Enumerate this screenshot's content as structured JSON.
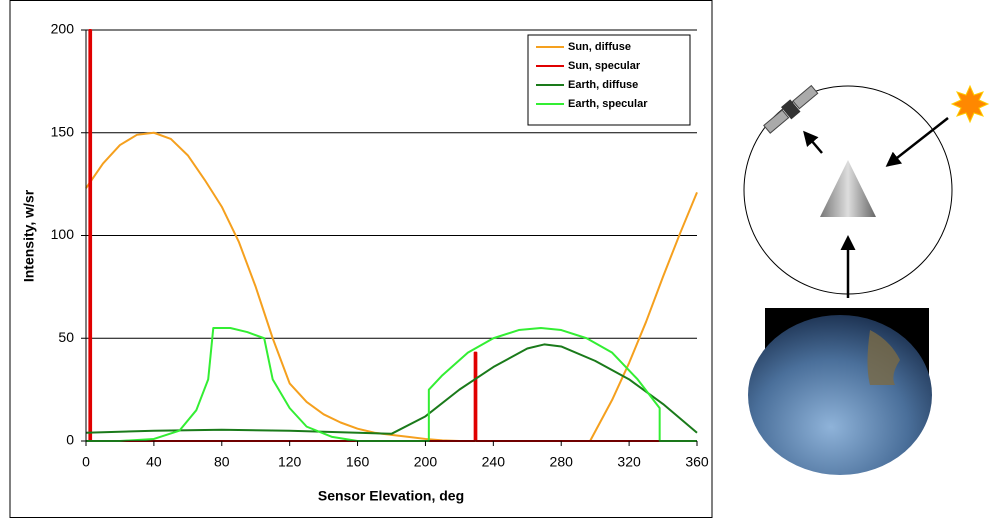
{
  "chart_data": {
    "type": "line",
    "xlabel": "Sensor Elevation, deg",
    "ylabel": "Intensity, w/sr",
    "xlim": [
      0,
      360
    ],
    "xticks": [
      0,
      40,
      80,
      120,
      160,
      200,
      240,
      280,
      320,
      360
    ],
    "ylim": [
      0,
      200
    ],
    "yticks": [
      0,
      50,
      100,
      150,
      200
    ],
    "grid": true,
    "legend": "upper right",
    "series": [
      {
        "name": "Sun, diffuse",
        "color": "#f5a01e",
        "x": [
          0,
          10,
          20,
          30,
          40,
          50,
          60,
          70,
          80,
          90,
          100,
          110,
          120,
          130,
          140,
          150,
          160,
          170,
          180,
          190,
          200,
          210,
          220,
          297,
          310,
          320,
          330,
          340,
          350,
          360
        ],
        "values": [
          123,
          135,
          144,
          149,
          150,
          147,
          139,
          127,
          114,
          97,
          75,
          50,
          28,
          19,
          13,
          9,
          6,
          4,
          3,
          2,
          1,
          0.3,
          0,
          0,
          20,
          38,
          58,
          80,
          101,
          121
        ]
      },
      {
        "name": "Sun, specular",
        "color": "#e00000",
        "x": [
          0,
          2,
          2,
          3,
          3,
          229,
          229,
          230,
          230,
          360
        ],
        "values": [
          0,
          0,
          200,
          200,
          0,
          0,
          43,
          43,
          0,
          0
        ]
      },
      {
        "name": "Earth, diffuse",
        "color": "#1a7a1a",
        "x": [
          0,
          40,
          80,
          120,
          160,
          180,
          200,
          220,
          240,
          260,
          270,
          280,
          300,
          320,
          340,
          360
        ],
        "values": [
          4,
          5,
          5.5,
          5,
          4,
          3.5,
          12,
          25,
          36,
          45,
          47,
          46,
          39,
          30,
          18,
          4
        ]
      },
      {
        "name": "Earth, specular",
        "color": "#33ee33",
        "x": [
          0,
          20,
          40,
          55,
          65,
          72,
          75,
          85,
          95,
          105,
          110,
          120,
          130,
          145,
          160,
          202,
          202,
          210,
          225,
          240,
          255,
          268,
          280,
          295,
          310,
          325,
          338,
          338,
          360
        ],
        "values": [
          0,
          0,
          1,
          5,
          15,
          30,
          55,
          55,
          53,
          50,
          30,
          16,
          7,
          2,
          0,
          0,
          25,
          32,
          43,
          50,
          54,
          55,
          54,
          50,
          43,
          30,
          16,
          0,
          0
        ]
      }
    ]
  }
}
